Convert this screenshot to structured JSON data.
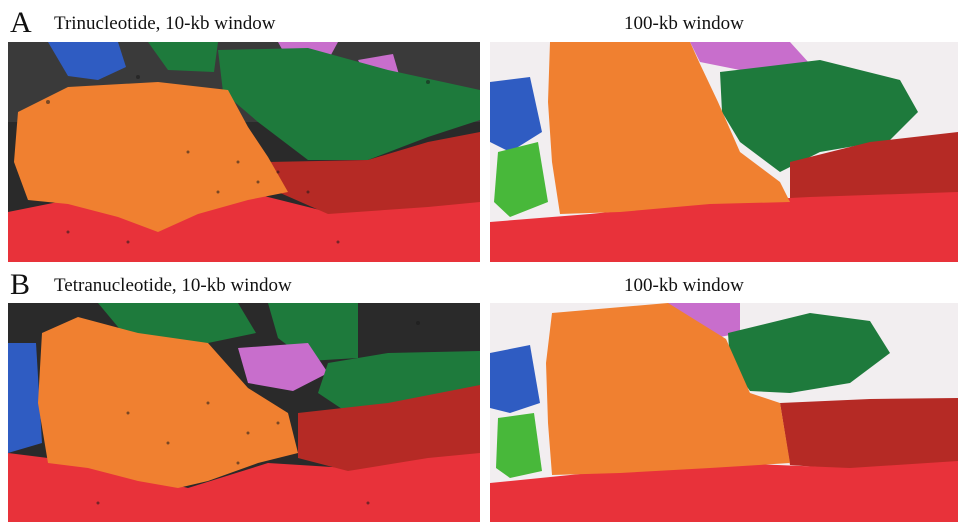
{
  "rows": [
    {
      "letter": "A",
      "left_title": "Trinucleotide, 10-kb window",
      "right_title": "100-kb window"
    },
    {
      "letter": "B",
      "left_title": "Tetranucleotide, 10-kb window",
      "right_title": "100-kb window"
    }
  ],
  "colors": {
    "red": "#e8323a",
    "dark_red": "#b52a25",
    "orange": "#f08030",
    "green": "#1e7a3c",
    "pink": "#c86ecc",
    "blue": "#2f5cc2",
    "light_green": "#48b83a",
    "noise": "#1a1a1a"
  }
}
